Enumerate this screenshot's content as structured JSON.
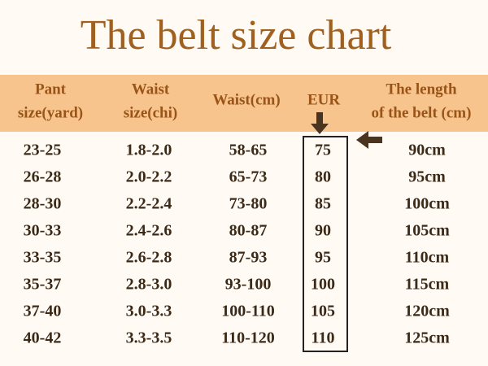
{
  "title": "The belt size chart",
  "headers": [
    [
      "Pant",
      "size(yard)"
    ],
    [
      "Waist",
      "size(chi)"
    ],
    [
      "Waist(cm)"
    ],
    [
      "EUR"
    ],
    [
      "The length",
      "of the belt (cm)"
    ]
  ],
  "rows": [
    [
      "23-25",
      "1.8-2.0",
      "58-65",
      "75",
      "90cm"
    ],
    [
      "26-28",
      "2.0-2.2",
      "65-73",
      "80",
      "95cm"
    ],
    [
      "28-30",
      "2.2-2.4",
      "73-80",
      "85",
      "100cm"
    ],
    [
      "30-33",
      "2.4-2.6",
      "80-87",
      "90",
      "105cm"
    ],
    [
      "33-35",
      "2.6-2.8",
      "87-93",
      "95",
      "110cm"
    ],
    [
      "35-37",
      "2.8-3.0",
      "93-100",
      "100",
      "115cm"
    ],
    [
      "37-40",
      "3.0-3.3",
      "100-110",
      "105",
      "120cm"
    ],
    [
      "40-42",
      "3.3-3.5",
      "110-120",
      "110",
      "125cm"
    ]
  ]
}
